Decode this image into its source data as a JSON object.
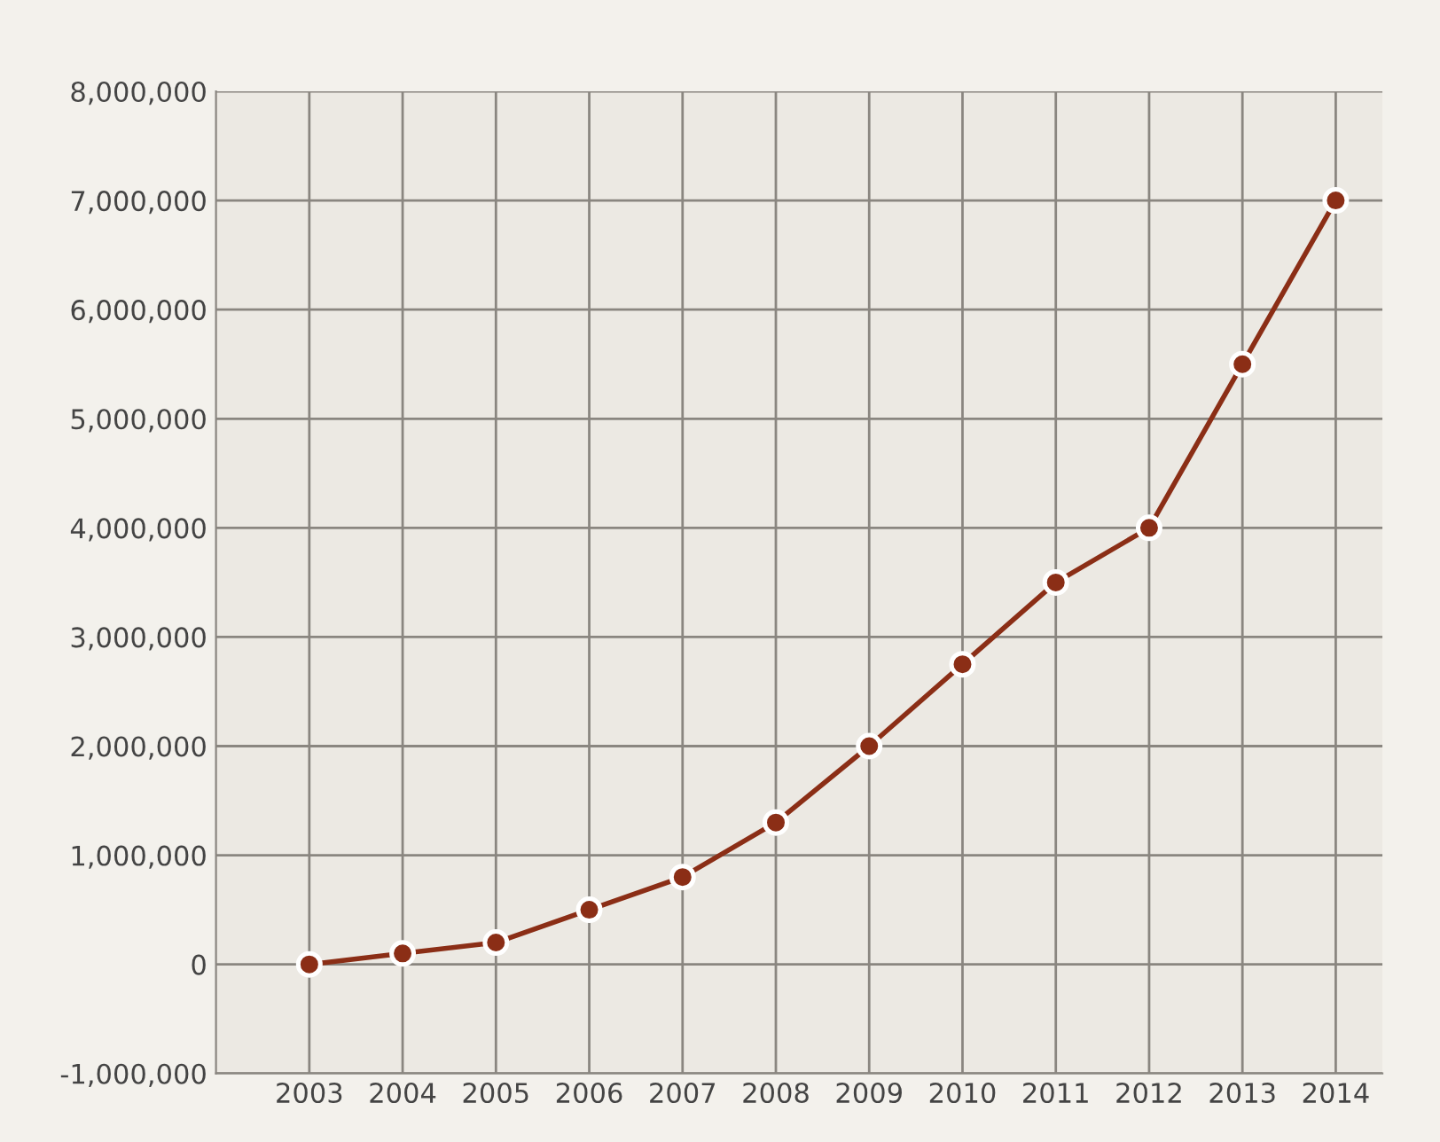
{
  "chart_data": {
    "type": "line",
    "categories": [
      "2003",
      "2004",
      "2005",
      "2006",
      "2007",
      "2008",
      "2009",
      "2010",
      "2011",
      "2012",
      "2013",
      "2014"
    ],
    "series": [
      {
        "color": "#8b2e16",
        "values": [
          0,
          100000,
          200000,
          500000,
          800000,
          1300000,
          2000000,
          2750000,
          3500000,
          4000000,
          5500000,
          7000000
        ]
      }
    ],
    "ylim": [
      -1000000,
      8000000
    ],
    "yticks": [
      {
        "value": -1000000,
        "label": "-1,000,000"
      },
      {
        "value": 0,
        "label": "0"
      },
      {
        "value": 1000000,
        "label": "1,000,000"
      },
      {
        "value": 2000000,
        "label": "2,000,000"
      },
      {
        "value": 3000000,
        "label": "3,000,000"
      },
      {
        "value": 4000000,
        "label": "4,000,000"
      },
      {
        "value": 5000000,
        "label": "5,000,000"
      },
      {
        "value": 6000000,
        "label": "6,000,000"
      },
      {
        "value": 7000000,
        "label": "7,000,000"
      },
      {
        "value": 8000000,
        "label": "8,000,000"
      }
    ],
    "grid": true,
    "marker": "circle",
    "line_style": "solid"
  }
}
